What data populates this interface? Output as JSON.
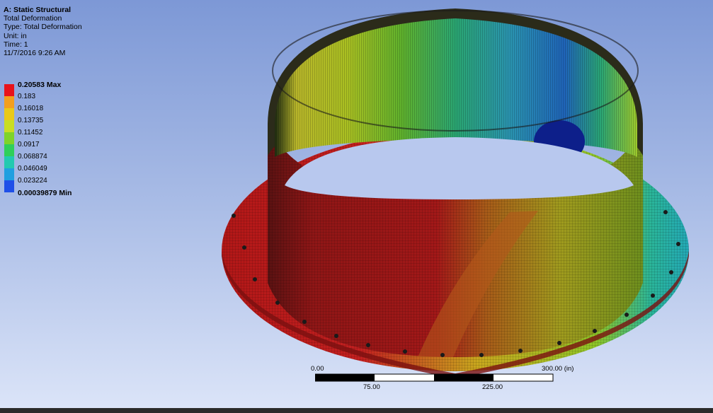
{
  "header": {
    "title": "A: Static Structural",
    "lines": [
      "Total Deformation",
      "Type: Total Deformation",
      "Unit: in",
      "Time: 1",
      "11/7/2016 9:26 AM"
    ]
  },
  "legend": {
    "entries": [
      {
        "label": "0.20583 Max",
        "color": "#e8131b"
      },
      {
        "label": "0.183",
        "color": "#f29f1e"
      },
      {
        "label": "0.16018",
        "color": "#e9c918"
      },
      {
        "label": "0.13735",
        "color": "#c9dd22"
      },
      {
        "label": "0.11452",
        "color": "#7fd32a"
      },
      {
        "label": "0.0917",
        "color": "#2fcf5a"
      },
      {
        "label": "0.068874",
        "color": "#22c9b0"
      },
      {
        "label": "0.046049",
        "color": "#1f9fe0"
      },
      {
        "label": "0.023224",
        "color": "#1f4fe8"
      }
    ],
    "min_label": "0.00039879 Min"
  },
  "scale_bar": {
    "labels_top": [
      "0.00",
      "300.00 (in)"
    ],
    "labels_bottom": [
      "75.00",
      "225.00"
    ]
  }
}
